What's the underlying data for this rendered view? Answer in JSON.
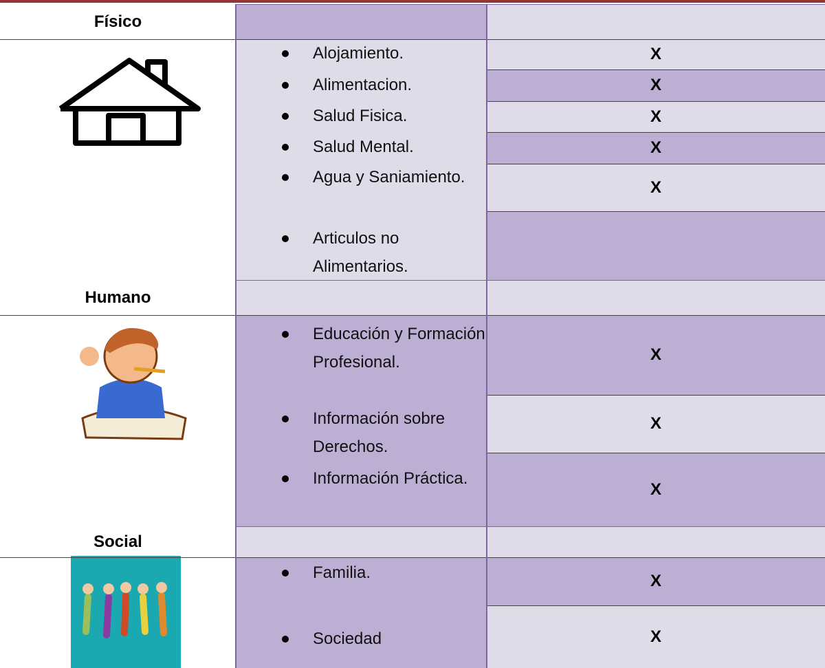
{
  "sections": [
    {
      "title": "Físico",
      "items": [
        "Alojamiento.",
        "Alimentacion.",
        "Salud Fisica.",
        "Salud Mental.",
        "Agua y Saniamiento.",
        "Articulos no Alimentarios."
      ],
      "marks": [
        "X",
        "X",
        "X",
        "X",
        "X"
      ]
    },
    {
      "title": "Humano",
      "items": [
        "Educación y Formación Profesional.",
        "Información sobre Derechos.",
        "Información Práctica."
      ],
      "marks": [
        "X",
        "X",
        "X"
      ]
    },
    {
      "title": "Social",
      "items": [
        "Familia.",
        "Sociedad"
      ],
      "marks": [
        "X",
        "X"
      ]
    }
  ]
}
